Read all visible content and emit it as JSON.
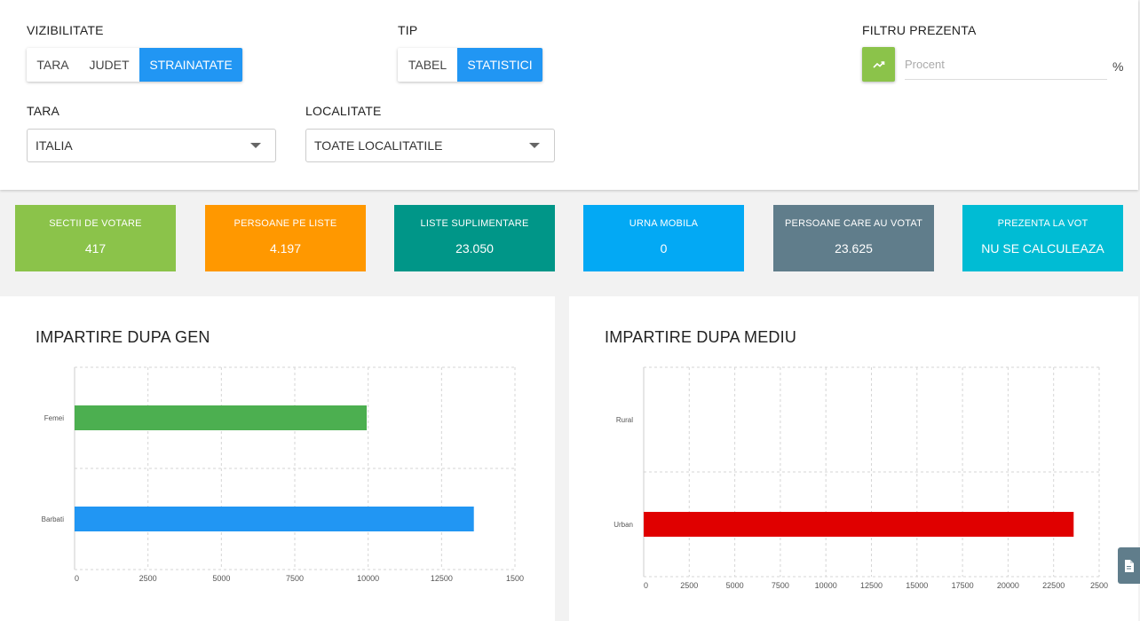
{
  "filters": {
    "visibility": {
      "label": "VIZIBILITATE",
      "options": [
        "TARA",
        "JUDET",
        "STRAINATATE"
      ],
      "active": "STRAINATATE"
    },
    "type": {
      "label": "TIP",
      "options": [
        "TABEL",
        "STATISTICI"
      ],
      "active": "STATISTICI"
    },
    "presence_filter": {
      "label": "FILTRU PREZENTA",
      "placeholder": "Procent",
      "unit": "%"
    },
    "country": {
      "label": "TARA",
      "value": "ITALIA"
    },
    "locality": {
      "label": "LOCALITATE",
      "value": "TOATE LOCALITATILE"
    }
  },
  "stats": [
    {
      "title": "SECTII DE VOTARE",
      "value": "417",
      "color": "#8bc34a"
    },
    {
      "title": "PERSOANE PE LISTE",
      "value": "4.197",
      "color": "#ff9800"
    },
    {
      "title": "LISTE SUPLIMENTARE",
      "value": "23.050",
      "color": "#009688"
    },
    {
      "title": "URNA MOBILA",
      "value": "0",
      "color": "#03a9f4"
    },
    {
      "title": "PERSOANE CARE AU VOTAT",
      "value": "23.625",
      "color": "#607d8b"
    },
    {
      "title": "PREZENTA LA VOT",
      "value": "NU SE CALCULEAZA",
      "color": "#00bcd4"
    }
  ],
  "chart_data": [
    {
      "type": "bar",
      "orientation": "horizontal",
      "title": "IMPARTIRE DUPA GEN",
      "categories": [
        "Femei",
        "Barbati"
      ],
      "values": [
        9950,
        13600
      ],
      "colors": [
        "#4caf50",
        "#2196f3"
      ],
      "xlim": [
        0,
        15000
      ],
      "xticks": [
        "0",
        "2500",
        "5000",
        "7500",
        "10000",
        "12500",
        "1500"
      ],
      "grid": true
    },
    {
      "type": "bar",
      "orientation": "horizontal",
      "title": "IMPARTIRE DUPA MEDIU",
      "categories": [
        "Rural",
        "Urban"
      ],
      "values": [
        0,
        23600
      ],
      "colors": [
        "#e00000",
        "#e00000"
      ],
      "xlim": [
        0,
        25000
      ],
      "xticks": [
        "0",
        "2500",
        "5000",
        "7500",
        "10000",
        "12500",
        "15000",
        "17500",
        "20000",
        "22500",
        "2500"
      ],
      "grid": true
    }
  ]
}
